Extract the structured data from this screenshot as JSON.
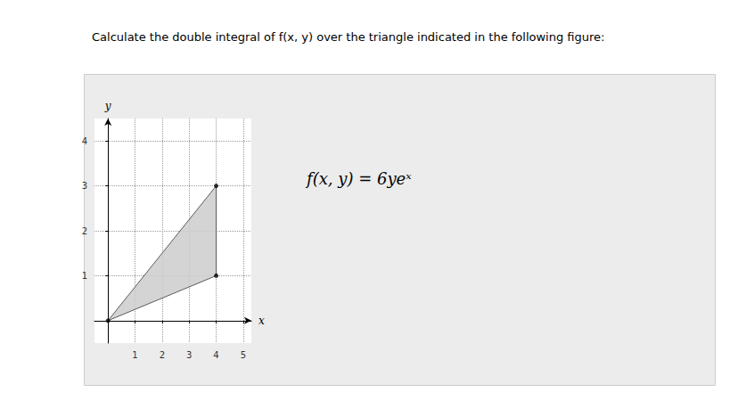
{
  "chart_data": {
    "type": "polygon",
    "title": "Calculate the double integral of f(x, y) over the triangle indicated in the following figure:",
    "annotation": "f(x, y) = 6yeˣ",
    "x": [
      0,
      4,
      4
    ],
    "values": [
      0,
      3,
      1
    ],
    "color": "#cccccc",
    "marker": "o",
    "xlim": [
      -0.5,
      5.3
    ],
    "ylim": [
      -0.5,
      4.5
    ],
    "xticks": [
      1,
      2,
      3,
      4,
      5
    ],
    "yticks": [
      1,
      2,
      3,
      4
    ],
    "xlabel": "x",
    "ylabel": "y",
    "grid": true
  }
}
